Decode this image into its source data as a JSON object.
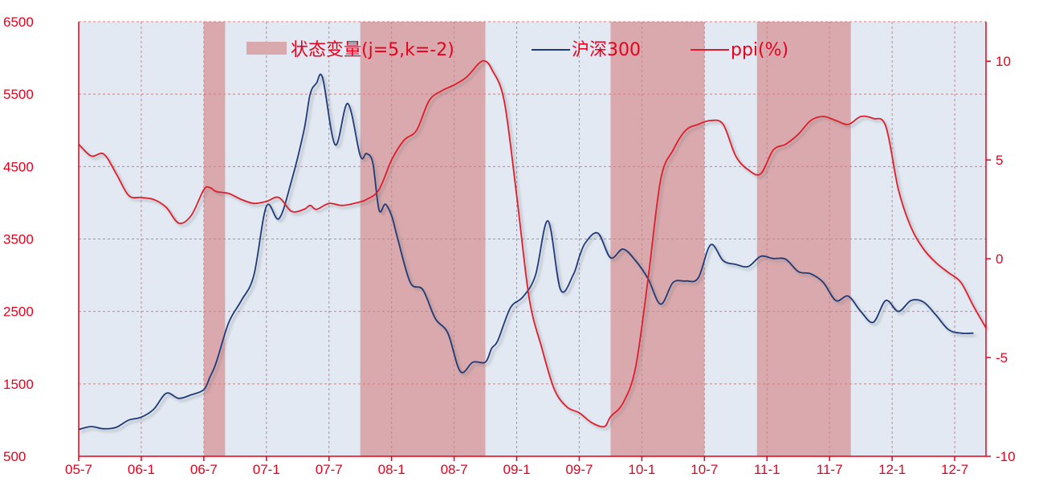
{
  "chart_data": {
    "type": "line",
    "x_categories": [
      "05-7",
      "06-1",
      "06-7",
      "07-1",
      "07-7",
      "08-1",
      "08-7",
      "09-1",
      "09-7",
      "10-1",
      "10-7",
      "11-1",
      "11-7",
      "12-1",
      "12-7"
    ],
    "x_range": [
      2005.5,
      2012.75
    ],
    "left_axis": {
      "range": [
        500,
        6500
      ],
      "ticks": [
        "500",
        "1500",
        "2500",
        "3500",
        "4500",
        "5500",
        "6500"
      ]
    },
    "right_axis": {
      "range": [
        -10,
        12
      ],
      "ticks": [
        "-10",
        "-5",
        "0",
        "5",
        "10"
      ]
    },
    "grid": true,
    "legend_position": "top-center",
    "legend": {
      "state": "状态变量(j=5,k=-2)",
      "hs300": "沪深300",
      "ppi": "ppi(%)"
    },
    "colors": {
      "plot_bg": "#e2e9f3",
      "band": "#d9a9ad",
      "axis_red": "#e8001c",
      "grid": "#e07a7a",
      "hs300": "#1e3a78",
      "ppi": "#e01a2a"
    },
    "state_bands": [
      [
        2006.5,
        2006.67
      ],
      [
        2007.75,
        2008.75
      ],
      [
        2009.75,
        2010.5
      ],
      [
        2010.92,
        2011.67
      ]
    ],
    "series": [
      {
        "name": "沪深300",
        "axis": "left",
        "x": [
          2005.5,
          2005.6,
          2005.7,
          2005.8,
          2005.9,
          2006.0,
          2006.1,
          2006.2,
          2006.3,
          2006.4,
          2006.5,
          2006.55,
          2006.6,
          2006.7,
          2006.8,
          2006.9,
          2007.0,
          2007.1,
          2007.2,
          2007.3,
          2007.35,
          2007.4,
          2007.45,
          2007.55,
          2007.65,
          2007.75,
          2007.8,
          2007.85,
          2007.9,
          2007.95,
          2008.0,
          2008.05,
          2008.15,
          2008.25,
          2008.35,
          2008.45,
          2008.55,
          2008.65,
          2008.75,
          2008.8,
          2008.85,
          2008.95,
          2009.05,
          2009.15,
          2009.25,
          2009.35,
          2009.45,
          2009.5,
          2009.55,
          2009.65,
          2009.75,
          2009.85,
          2009.95,
          2010.05,
          2010.15,
          2010.25,
          2010.35,
          2010.45,
          2010.55,
          2010.65,
          2010.75,
          2010.85,
          2010.95,
          2011.05,
          2011.15,
          2011.25,
          2011.35,
          2011.45,
          2011.55,
          2011.65,
          2011.75,
          2011.85,
          2011.95,
          2012.05,
          2012.15,
          2012.25,
          2012.35,
          2012.45,
          2012.55,
          2012.65
        ],
        "values": [
          870,
          910,
          880,
          900,
          1000,
          1040,
          1150,
          1370,
          1300,
          1350,
          1420,
          1600,
          1800,
          2350,
          2650,
          3000,
          3950,
          3780,
          4300,
          5000,
          5500,
          5650,
          5720,
          4800,
          5370,
          4650,
          4680,
          4550,
          3900,
          3980,
          3820,
          3500,
          2900,
          2800,
          2400,
          2200,
          1670,
          1800,
          1800,
          1990,
          2100,
          2550,
          2700,
          3000,
          3750,
          2800,
          3000,
          3250,
          3450,
          3580,
          3240,
          3360,
          3200,
          2950,
          2600,
          2900,
          2920,
          2960,
          3420,
          3200,
          3150,
          3120,
          3260,
          3230,
          3220,
          3050,
          3020,
          2900,
          2650,
          2710,
          2500,
          2350,
          2650,
          2500,
          2650,
          2630,
          2450,
          2250,
          2200,
          2200
        ]
      },
      {
        "name": "ppi(%)",
        "axis": "right",
        "x": [
          2005.5,
          2005.6,
          2005.7,
          2005.8,
          2005.9,
          2006.0,
          2006.1,
          2006.2,
          2006.3,
          2006.4,
          2006.5,
          2006.55,
          2006.6,
          2006.7,
          2006.8,
          2006.9,
          2007.0,
          2007.1,
          2007.2,
          2007.3,
          2007.35,
          2007.4,
          2007.5,
          2007.6,
          2007.7,
          2007.8,
          2007.9,
          2008.0,
          2008.1,
          2008.2,
          2008.3,
          2008.4,
          2008.5,
          2008.6,
          2008.7,
          2008.75,
          2008.8,
          2008.9,
          2009.0,
          2009.1,
          2009.2,
          2009.3,
          2009.4,
          2009.5,
          2009.6,
          2009.7,
          2009.75,
          2009.85,
          2009.95,
          2010.05,
          2010.15,
          2010.25,
          2010.35,
          2010.45,
          2010.55,
          2010.65,
          2010.75,
          2010.85,
          2010.95,
          2011.05,
          2011.15,
          2011.25,
          2011.35,
          2011.45,
          2011.55,
          2011.65,
          2011.75,
          2011.85,
          2011.95,
          2012.05,
          2012.15,
          2012.25,
          2012.35,
          2012.45,
          2012.55,
          2012.65,
          2012.75
        ],
        "values": [
          5.8,
          5.2,
          5.3,
          4.3,
          3.2,
          3.1,
          3.0,
          2.6,
          1.8,
          2.2,
          3.5,
          3.6,
          3.4,
          3.3,
          3.0,
          2.8,
          2.9,
          3.1,
          2.4,
          2.5,
          2.7,
          2.5,
          2.8,
          2.7,
          2.8,
          3.0,
          3.5,
          5.0,
          6.0,
          6.5,
          8.0,
          8.5,
          8.8,
          9.2,
          9.9,
          10.0,
          9.6,
          8.0,
          3.2,
          -2.0,
          -4.5,
          -6.6,
          -7.5,
          -7.8,
          -8.3,
          -8.5,
          -8.0,
          -7.3,
          -5.5,
          -1.0,
          4.0,
          5.5,
          6.5,
          6.8,
          7.0,
          6.8,
          5.2,
          4.5,
          4.3,
          5.5,
          5.8,
          6.3,
          7.0,
          7.2,
          7.0,
          6.8,
          7.2,
          7.1,
          6.7,
          3.5,
          1.6,
          0.5,
          -0.2,
          -0.7,
          -1.2,
          -2.4,
          -3.5
        ]
      }
    ]
  }
}
